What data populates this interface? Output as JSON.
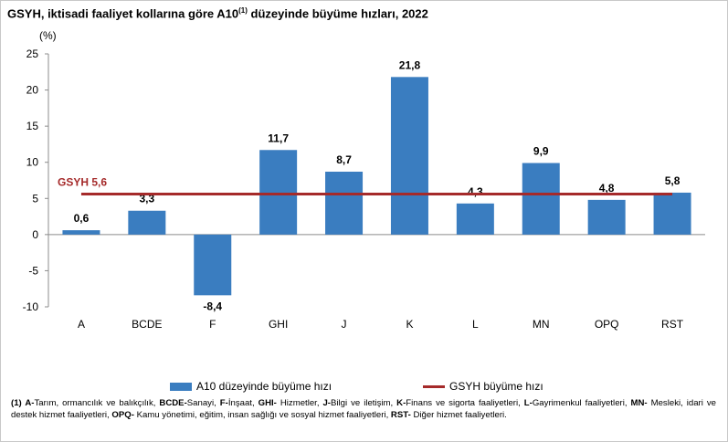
{
  "title": "GSYH, iktisadi faaliyet kollarına göre A10",
  "title_sup": "(1)",
  "title_tail": " düzeyinde büyüme hızları, 2022",
  "colors": {
    "bar": "#3a7dc0",
    "line": "#a52a2a",
    "axis": "#8c8c8c"
  },
  "chart_data": {
    "type": "bar",
    "title": "GSYH, iktisadi faaliyet kollarına göre A10(1) düzeyinde büyüme hızları, 2022",
    "ylabel": "(%)",
    "ylim": [
      -10,
      25
    ],
    "yticks": [
      -10,
      -5,
      0,
      5,
      10,
      15,
      20,
      25
    ],
    "categories": [
      "A",
      "BCDE",
      "F",
      "GHI",
      "J",
      "K",
      "L",
      "MN",
      "OPQ",
      "RST"
    ],
    "series": [
      {
        "name": "A10 düzeyinde büyüme hızı",
        "values": [
          0.6,
          3.3,
          -8.4,
          11.7,
          8.7,
          21.8,
          4.3,
          9.9,
          4.8,
          5.8
        ],
        "labels": [
          "0,6",
          "3,3",
          "-8,4",
          "11,7",
          "8,7",
          "21,8",
          "4,3",
          "9,9",
          "4,8",
          "5,8"
        ]
      }
    ],
    "reference_line": {
      "name": "GSYH büyüme hızı",
      "value": 5.6,
      "label": "GSYH 5,6"
    },
    "grid": false,
    "legend": "bottom"
  },
  "footnote": [
    {
      "b": "(1) A-",
      "t": "Tarım, ormancılık ve balıkçılık, "
    },
    {
      "b": "BCDE-",
      "t": "Sanayi, "
    },
    {
      "b": "F-",
      "t": "İnşaat, "
    },
    {
      "b": "GHI-",
      "t": " Hizmetler, "
    },
    {
      "b": "J-",
      "t": "Bilgi ve iletişim, "
    },
    {
      "b": "K-",
      "t": "Finans ve sigorta faaliyetleri, "
    },
    {
      "b": "L-",
      "t": "Gayrimenkul faaliyetleri, "
    },
    {
      "b": "MN-",
      "t": " Mesleki, idari ve destek hizmet faaliyetleri, "
    },
    {
      "b": "OPQ-",
      "t": " Kamu yönetimi, eğitim, insan sağlığı ve sosyal hizmet faaliyetleri, "
    },
    {
      "b": "RST-",
      "t": " Diğer hizmet faaliyetleri."
    }
  ]
}
